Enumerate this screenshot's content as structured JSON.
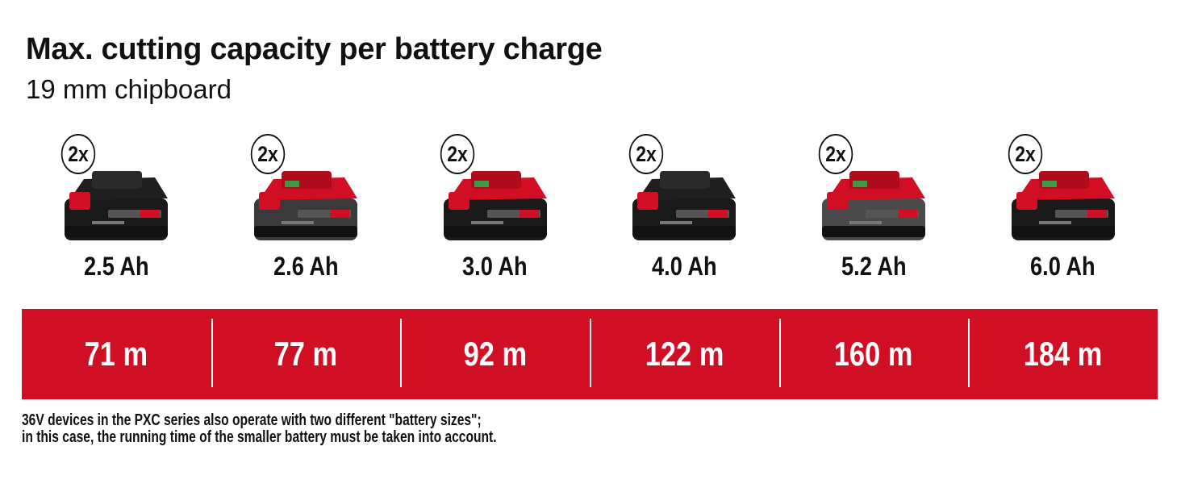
{
  "header": {
    "title": "Max. cutting capacity per battery charge",
    "subtitle": "19 mm chipboard"
  },
  "batteries": [
    {
      "quantity": "2x",
      "capacity": "2.5 Ah",
      "result": "71 m",
      "body_color": "#1a1a1a",
      "top_color": "#1f1f1f"
    },
    {
      "quantity": "2x",
      "capacity": "2.6 Ah",
      "result": "77 m",
      "body_color": "#3a3a3a",
      "top_color": "#d10f24"
    },
    {
      "quantity": "2x",
      "capacity": "3.0 Ah",
      "result": "92 m",
      "body_color": "#1a1a1a",
      "top_color": "#d10f24"
    },
    {
      "quantity": "2x",
      "capacity": "4.0 Ah",
      "result": "122 m",
      "body_color": "#1a1a1a",
      "top_color": "#1f1f1f"
    },
    {
      "quantity": "2x",
      "capacity": "5.2 Ah",
      "result": "160 m",
      "body_color": "#4a4a4a",
      "top_color": "#d10f24"
    },
    {
      "quantity": "2x",
      "capacity": "6.0 Ah",
      "result": "184 m",
      "body_color": "#1a1a1a",
      "top_color": "#d10f24"
    }
  ],
  "footnote": {
    "line1": "36V devices in the PXC series also operate with two different \"battery sizes\";",
    "line2": "in this case, the running time of the smaller battery must be taken into account."
  },
  "colors": {
    "accent_red": "#d10f24",
    "text": "#111111"
  }
}
